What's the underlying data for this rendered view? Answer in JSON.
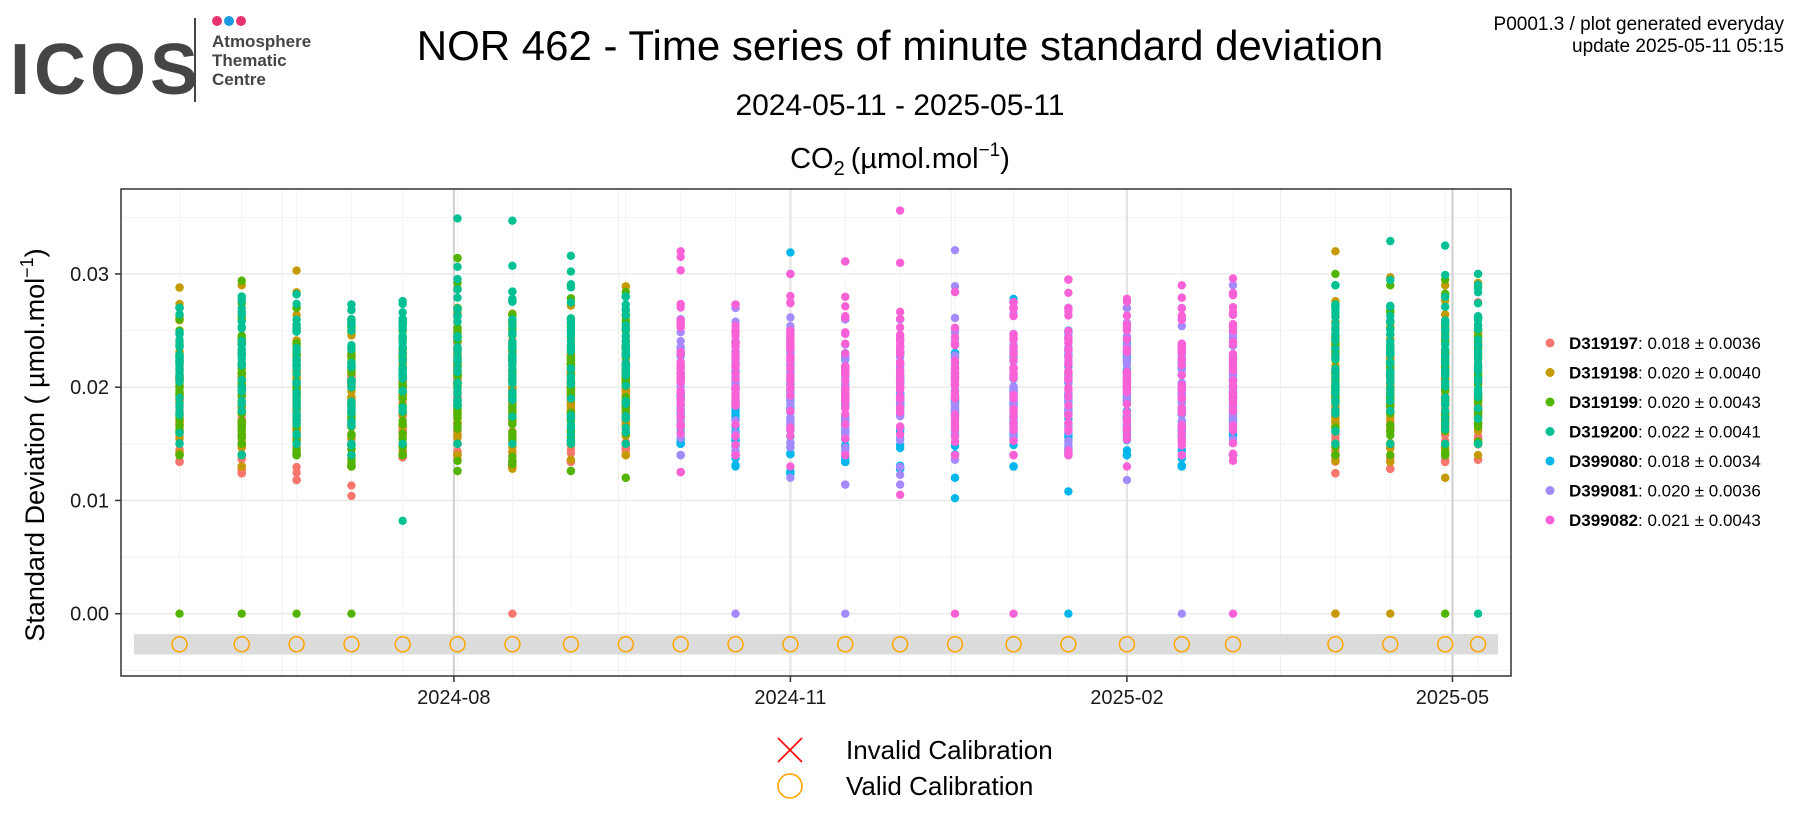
{
  "logo": {
    "wordmark": "ICOS",
    "line1": "Atmosphere",
    "line2": "Thematic",
    "line3": "Centre",
    "dot_colors": [
      "#e8336e",
      "#1b9be0",
      "#e8336e"
    ]
  },
  "header": {
    "title": "NOR 462 - Time series of minute standard deviation",
    "subtitle": "2024-05-11 - 2025-05-11",
    "meta_line1": "P0001.3 / plot generated everyday",
    "meta_line2": "update  2025-05-11 05:15"
  },
  "chart_data": {
    "type": "scatter",
    "title_main": "CO",
    "title_sub": "2",
    "title_unit": "(µmol.mol",
    "title_exp": "−1",
    "title_close": ")",
    "ylabel_main": "Standard Deviation ( µmol.mol",
    "ylabel_exp": "−1",
    "ylabel_close": ")",
    "ylim": [
      -0.0055,
      0.0375
    ],
    "xlim": [
      "2024-05-02",
      "2025-05-17"
    ],
    "y_ticks": [
      "0.00",
      "0.01",
      "0.02",
      "0.03"
    ],
    "y_tick_values": [
      0,
      0.01,
      0.02,
      0.03
    ],
    "x_ticks": [
      "2024-08",
      "2024-11",
      "2025-02",
      "2025-05"
    ],
    "x_tick_dates": [
      "2024-08-01",
      "2024-11-01",
      "2025-02-01",
      "2025-05-01"
    ],
    "grid": true,
    "legend_position": "right",
    "series": [
      {
        "name": "D319197",
        "stat": ": 0.018 ± 0.0036",
        "color": "#F8766D",
        "dates": [
          "2024-05-18",
          "2024-06-04",
          "2024-06-19",
          "2024-07-04",
          "2024-07-18",
          "2024-08-02",
          "2024-08-17",
          "2024-09-02",
          "2024-09-17",
          "2025-03-30",
          "2025-04-14",
          "2025-04-29",
          "2025-05-08"
        ],
        "mean": 0.018,
        "sd": 0.0036,
        "min": [
          0.0134,
          0.0124,
          0.0118,
          0.0104,
          0.0138,
          0.0136,
          0.013,
          0.0134,
          0.014,
          0.0124,
          0.0128,
          0.0134,
          0.0136
        ],
        "max": [
          0.024,
          0.023,
          0.0225,
          0.0228,
          0.023,
          0.024,
          0.0277,
          0.023,
          0.0228,
          0.023,
          0.0228,
          0.023,
          0.0275
        ],
        "zero": [
          "2024-08-17",
          "2025-03-30"
        ]
      },
      {
        "name": "D319198",
        "stat": ": 0.020 ± 0.0040",
        "color": "#C49A00",
        "dates": [
          "2024-05-18",
          "2024-06-04",
          "2024-06-19",
          "2024-07-04",
          "2024-07-18",
          "2024-08-02",
          "2024-08-17",
          "2024-09-02",
          "2024-09-17",
          "2025-03-30",
          "2025-04-14",
          "2025-04-29",
          "2025-05-08"
        ],
        "mean": 0.02,
        "sd": 0.004,
        "min": [
          0.014,
          0.013,
          0.014,
          0.013,
          0.014,
          0.014,
          0.0128,
          0.0136,
          0.014,
          0.0135,
          0.0134,
          0.012,
          0.014
        ],
        "max": [
          0.0288,
          0.029,
          0.0303,
          0.026,
          0.0255,
          0.027,
          0.0265,
          0.0272,
          0.0289,
          0.032,
          0.0297,
          0.029,
          0.0292
        ],
        "zero": [
          "2025-03-30",
          "2025-04-14"
        ]
      },
      {
        "name": "D319199",
        "stat": ": 0.020 ± 0.0043",
        "color": "#53B400",
        "dates": [
          "2024-05-18",
          "2024-06-04",
          "2024-06-19",
          "2024-07-04",
          "2024-07-18",
          "2024-08-02",
          "2024-08-17",
          "2024-09-02",
          "2024-09-17",
          "2025-03-30",
          "2025-04-14",
          "2025-04-29",
          "2025-05-08"
        ],
        "mean": 0.02,
        "sd": 0.0043,
        "min": [
          0.014,
          0.015,
          0.014,
          0.013,
          0.014,
          0.0126,
          0.0132,
          0.0126,
          0.012,
          0.014,
          0.014,
          0.014,
          0.015
        ],
        "max": [
          0.026,
          0.0294,
          0.027,
          0.0268,
          0.026,
          0.0314,
          0.0264,
          0.029,
          0.0284,
          0.03,
          0.029,
          0.0295,
          0.03
        ],
        "zero": [
          "2024-05-18",
          "2024-06-04",
          "2024-06-19",
          "2024-07-04",
          "2025-04-29"
        ]
      },
      {
        "name": "D319200",
        "stat": ": 0.022 ± 0.0041",
        "color": "#00C094",
        "dates": [
          "2024-05-18",
          "2024-06-04",
          "2024-06-19",
          "2024-07-04",
          "2024-07-18",
          "2024-08-02",
          "2024-08-17",
          "2024-09-02",
          "2024-09-17",
          "2025-03-30",
          "2025-04-14",
          "2025-04-29",
          "2025-05-08"
        ],
        "mean": 0.022,
        "sd": 0.0041,
        "min": [
          0.015,
          0.014,
          0.015,
          0.014,
          0.015,
          0.015,
          0.015,
          0.015,
          0.015,
          0.015,
          0.015,
          0.015,
          0.015
        ],
        "max": [
          0.027,
          0.028,
          0.0282,
          0.0273,
          0.0276,
          0.0349,
          0.0347,
          0.0316,
          0.028,
          0.029,
          0.0329,
          0.0325,
          0.03
        ],
        "zero": [
          "2025-05-08"
        ],
        "outliers": [
          [
            "2024-07-18",
            0.0082
          ]
        ]
      },
      {
        "name": "D399080",
        "stat": ": 0.018 ± 0.0034",
        "color": "#00B6EB",
        "dates": [
          "2024-10-02",
          "2024-10-17",
          "2024-11-01",
          "2024-11-16",
          "2024-12-01",
          "2024-12-16",
          "2025-01-01",
          "2025-01-16",
          "2025-02-01",
          "2025-02-16",
          "2025-03-02"
        ],
        "mean": 0.018,
        "sd": 0.0034,
        "min": [
          0.015,
          0.013,
          0.0124,
          0.0134,
          0.0128,
          0.012,
          0.013,
          0.014,
          0.014,
          0.013,
          0.014
        ],
        "max": [
          0.023,
          0.023,
          0.0319,
          0.023,
          0.026,
          0.023,
          0.0278,
          0.025,
          0.024,
          0.026,
          0.025
        ],
        "zero": [
          "2025-01-16"
        ],
        "outliers": [
          [
            "2024-12-16",
            0.0102
          ],
          [
            "2025-01-16",
            0.0108
          ]
        ]
      },
      {
        "name": "D399081",
        "stat": ": 0.020 ± 0.0036",
        "color": "#A58AFF",
        "dates": [
          "2024-10-02",
          "2024-10-17",
          "2024-11-01",
          "2024-11-16",
          "2024-12-01",
          "2024-12-16",
          "2025-01-01",
          "2025-01-16",
          "2025-02-01",
          "2025-02-16",
          "2025-03-02"
        ],
        "mean": 0.02,
        "sd": 0.0036,
        "min": [
          0.014,
          0.014,
          0.012,
          0.0114,
          0.0114,
          0.0136,
          0.014,
          0.014,
          0.0118,
          0.014,
          0.014
        ],
        "max": [
          0.026,
          0.027,
          0.03,
          0.026,
          0.026,
          0.0321,
          0.027,
          0.027,
          0.027,
          0.027,
          0.029
        ],
        "zero": [
          "2024-10-17",
          "2024-11-16",
          "2025-02-16"
        ]
      },
      {
        "name": "D399082",
        "stat": ": 0.021 ± 0.0043",
        "color": "#FB61D7",
        "dates": [
          "2024-10-02",
          "2024-10-17",
          "2024-11-01",
          "2024-11-16",
          "2024-12-01",
          "2024-12-16",
          "2025-01-01",
          "2025-01-16",
          "2025-02-01",
          "2025-02-16",
          "2025-03-02"
        ],
        "mean": 0.021,
        "sd": 0.0043,
        "min": [
          0.0125,
          0.014,
          0.013,
          0.014,
          0.0105,
          0.014,
          0.014,
          0.014,
          0.013,
          0.014,
          0.0135
        ],
        "max": [
          0.032,
          0.0273,
          0.03,
          0.0311,
          0.0356,
          0.0284,
          0.0275,
          0.0295,
          0.0278,
          0.029,
          0.0296
        ],
        "zero": [
          "2024-12-16",
          "2025-01-01",
          "2025-03-02"
        ]
      }
    ],
    "calibration_dates": [
      "2024-05-18",
      "2024-06-04",
      "2024-06-19",
      "2024-07-04",
      "2024-07-18",
      "2024-08-02",
      "2024-08-17",
      "2024-09-02",
      "2024-09-17",
      "2024-10-02",
      "2024-10-17",
      "2024-11-01",
      "2024-11-16",
      "2024-12-01",
      "2024-12-16",
      "2025-01-01",
      "2025-01-16",
      "2025-02-01",
      "2025-02-16",
      "2025-03-02",
      "2025-03-30",
      "2025-04-14",
      "2025-04-29",
      "2025-05-08"
    ],
    "calibration_status": "valid",
    "calibration_legend": [
      {
        "label": "Invalid Calibration",
        "color": "#ff0000",
        "shape": "cross"
      },
      {
        "label": "Valid Calibration",
        "color": "#ffa500",
        "shape": "circle"
      }
    ]
  }
}
